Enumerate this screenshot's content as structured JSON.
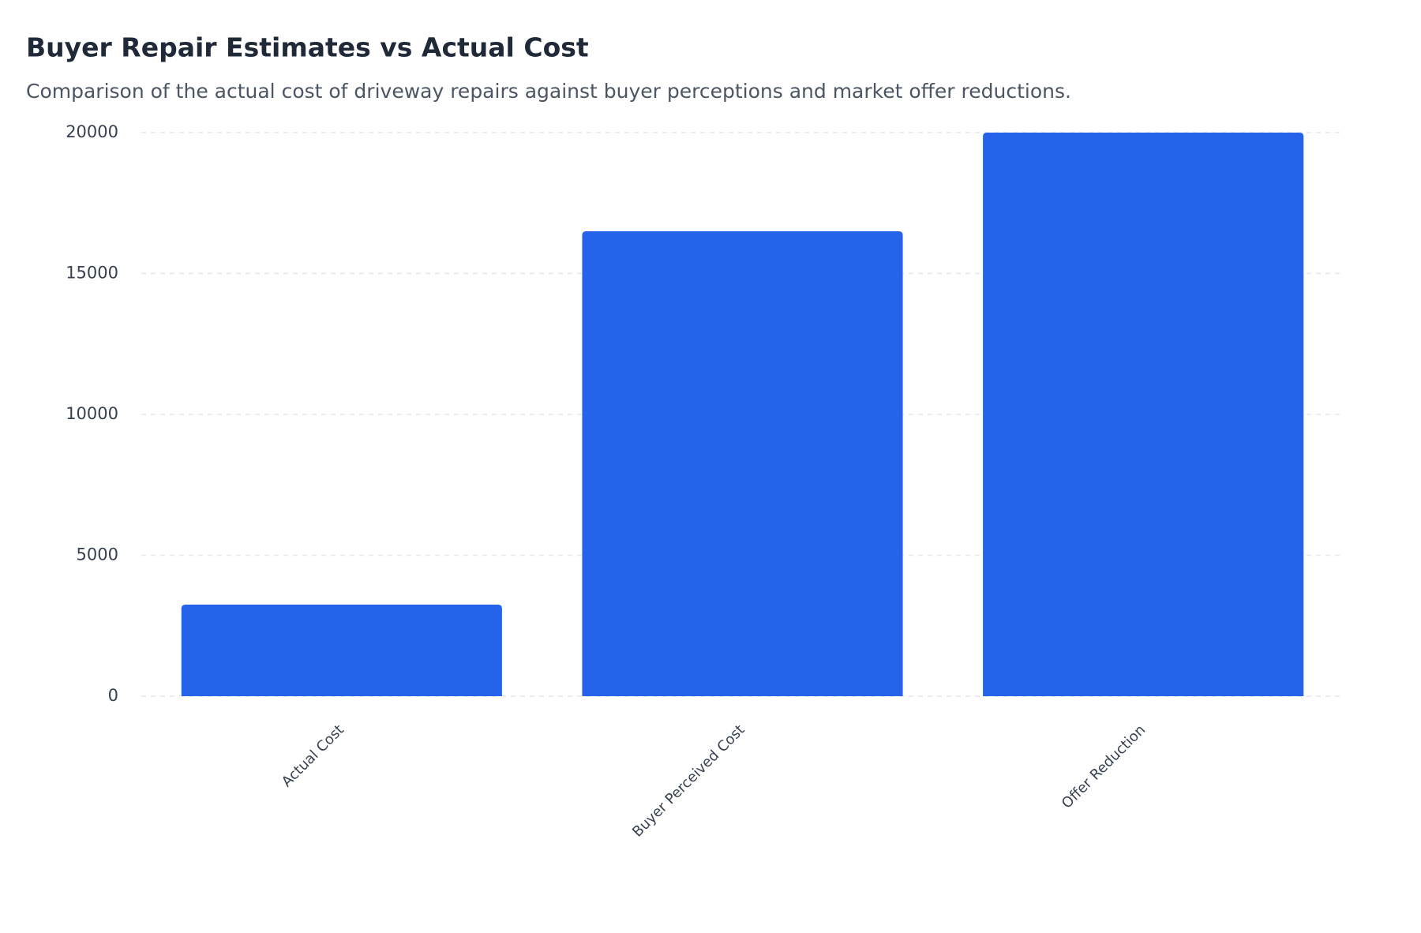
{
  "chart_data": {
    "type": "bar",
    "title": "Buyer Repair Estimates vs Actual Cost",
    "subtitle": "Comparison of the actual cost of driveway repairs against buyer perceptions and market offer reductions.",
    "categories": [
      "Actual Cost",
      "Buyer Perceived Cost",
      "Offer Reduction"
    ],
    "values": [
      3250,
      16500,
      20000
    ],
    "color": "#2563eb",
    "ylim": [
      0,
      20000
    ],
    "yticks": [
      0,
      5000,
      10000,
      15000,
      20000
    ],
    "grid": true
  }
}
